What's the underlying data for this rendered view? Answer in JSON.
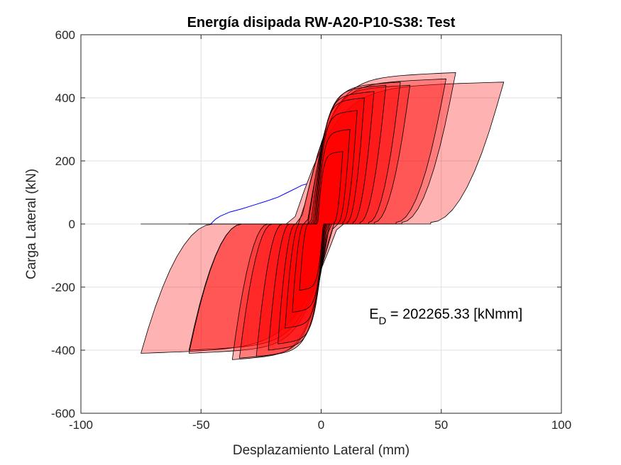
{
  "chart_data": {
    "type": "area",
    "title": "Energía disipada RW-A20-P10-S38: Test",
    "xlabel": "Desplazamiento Lateral (mm)",
    "ylabel": "Carga Lateral (kN)",
    "xlim": [
      -100,
      100
    ],
    "ylim": [
      -600,
      600
    ],
    "xticks": [
      -100,
      -50,
      0,
      50,
      100
    ],
    "yticks": [
      -600,
      -400,
      -200,
      0,
      200,
      400,
      600
    ],
    "grid": true,
    "annotation": {
      "base": "E",
      "subscript": "D",
      "text": " = 202265.33 [kNmm]"
    },
    "colors": {
      "fill": "#ff0000",
      "edge": "#000000",
      "trace": "#0000ff"
    },
    "loops": [
      {
        "dmax": 9,
        "dmin": -9,
        "fmax": 230,
        "fmin": -210,
        "opacity": 0.35
      },
      {
        "dmax": 12,
        "dmin": -12,
        "fmax": 300,
        "fmin": -280,
        "opacity": 0.35
      },
      {
        "dmax": 15,
        "dmin": -15,
        "fmax": 360,
        "fmin": -330,
        "opacity": 0.35
      },
      {
        "dmax": 18,
        "dmin": -18,
        "fmax": 400,
        "fmin": -380,
        "opacity": 0.35
      },
      {
        "dmax": 22,
        "dmin": -22,
        "fmax": 420,
        "fmin": -400,
        "opacity": 0.35
      },
      {
        "dmax": 27,
        "dmin": -27,
        "fmax": 440,
        "fmin": -420,
        "opacity": 0.35
      },
      {
        "dmax": 33,
        "dmin": -34,
        "fmax": 450,
        "fmin": -425,
        "opacity": 0.3
      },
      {
        "dmax": 37,
        "dmin": -37,
        "fmax": 440,
        "fmin": -430,
        "opacity": 0.3
      },
      {
        "dmax": 52,
        "dmin": -55,
        "fmax": 460,
        "fmin": -410,
        "opacity": 0.3
      },
      {
        "dmax": 56,
        "dmin": -55,
        "fmax": 480,
        "fmin": -400,
        "opacity": 0.3
      },
      {
        "dmax": 76,
        "dmin": -75,
        "fmax": 450,
        "fmin": -410,
        "opacity": 0.3
      }
    ],
    "trace": {
      "x": [
        -46,
        -44,
        -42,
        -38,
        -33,
        -28,
        -23,
        -18,
        -14,
        -10,
        -8,
        -6
      ],
      "y": [
        0,
        15,
        25,
        38,
        48,
        60,
        72,
        85,
        100,
        115,
        123,
        127
      ]
    }
  }
}
